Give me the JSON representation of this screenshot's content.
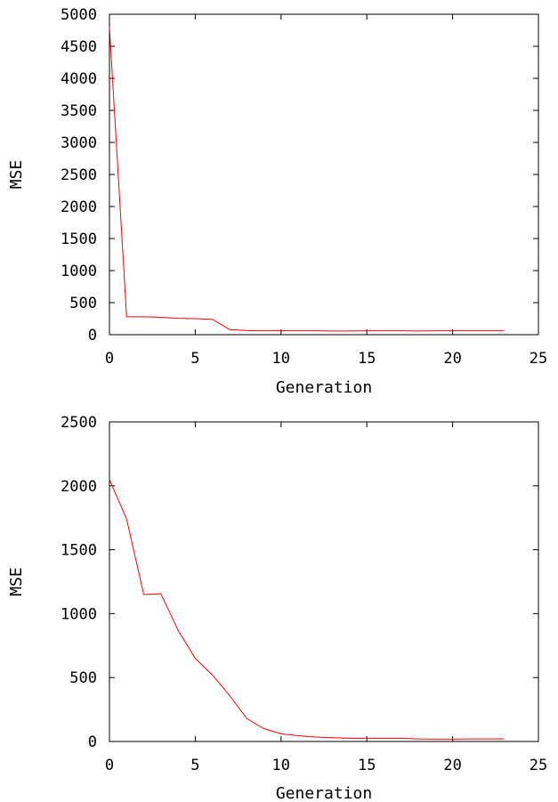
{
  "chart_data": [
    {
      "type": "line",
      "title": "",
      "xlabel": "Generation",
      "ylabel": "MSE",
      "xlim": [
        0,
        25
      ],
      "ylim": [
        0,
        5000
      ],
      "xticks": [
        0,
        5,
        10,
        15,
        20,
        25
      ],
      "yticks": [
        0,
        500,
        1000,
        1500,
        2000,
        2500,
        3000,
        3500,
        4000,
        4500,
        5000
      ],
      "grid": false,
      "series": [
        {
          "color": "#ff0000",
          "x": [
            0,
            1,
            2,
            3,
            4,
            5,
            6,
            7,
            8,
            9,
            10,
            11,
            12,
            13,
            14,
            15,
            16,
            17,
            18,
            19,
            20,
            21,
            22,
            23
          ],
          "y": [
            4800,
            280,
            280,
            270,
            255,
            250,
            240,
            80,
            65,
            60,
            60,
            60,
            60,
            58,
            58,
            60,
            60,
            60,
            58,
            60,
            60,
            60,
            60,
            60
          ]
        }
      ]
    },
    {
      "type": "line",
      "title": "",
      "xlabel": "Generation",
      "ylabel": "MSE",
      "xlim": [
        0,
        25
      ],
      "ylim": [
        0,
        2500
      ],
      "xticks": [
        0,
        5,
        10,
        15,
        20,
        25
      ],
      "yticks": [
        0,
        500,
        1000,
        1500,
        2000,
        2500
      ],
      "grid": false,
      "series": [
        {
          "color": "#ff0000",
          "x": [
            0,
            1,
            2,
            3,
            4,
            5,
            6,
            7,
            8,
            9,
            10,
            11,
            12,
            13,
            14,
            15,
            16,
            17,
            18,
            19,
            20,
            21,
            22,
            23
          ],
          "y": [
            2050,
            1740,
            1150,
            1155,
            870,
            650,
            520,
            360,
            180,
            100,
            60,
            45,
            35,
            30,
            25,
            25,
            25,
            25,
            20,
            18,
            18,
            20,
            20,
            20
          ]
        }
      ]
    }
  ]
}
